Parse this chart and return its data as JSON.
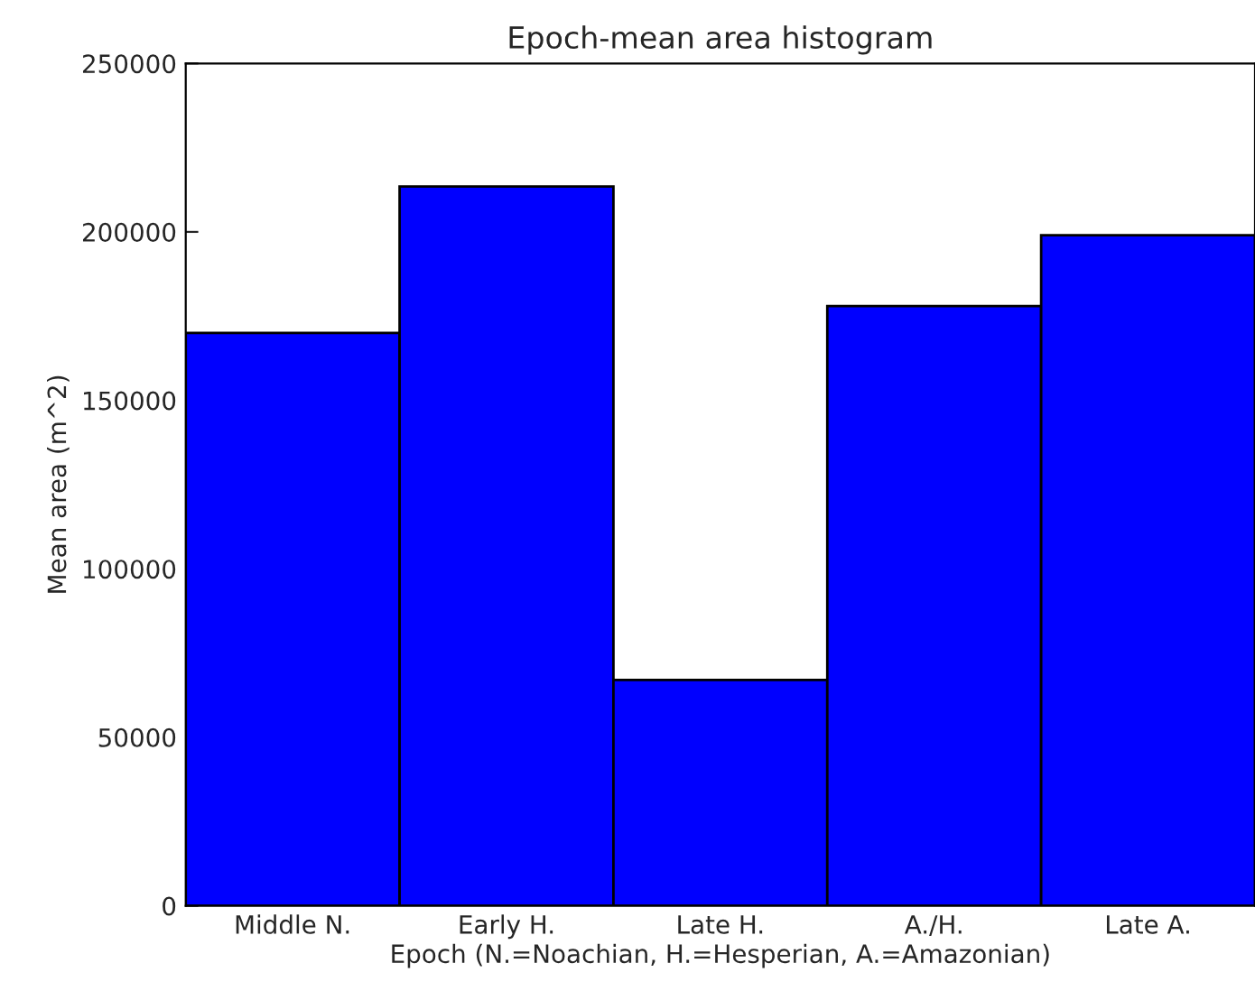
{
  "chart_data": {
    "type": "bar",
    "title": "Epoch-mean area histogram",
    "xlabel": "Epoch (N.=Noachian, H.=Hesperian, A.=Amazonian)",
    "ylabel": "Mean area (m^2)",
    "categories": [
      "Middle N.",
      "Early H.",
      "Late H.",
      "A./H.",
      "Late A."
    ],
    "values": [
      170000,
      213500,
      67000,
      178000,
      199000
    ],
    "color": "#0000ff",
    "ylim": [
      0,
      250000
    ],
    "yticks": [
      0,
      50000,
      100000,
      150000,
      200000,
      250000
    ],
    "grid": false
  }
}
